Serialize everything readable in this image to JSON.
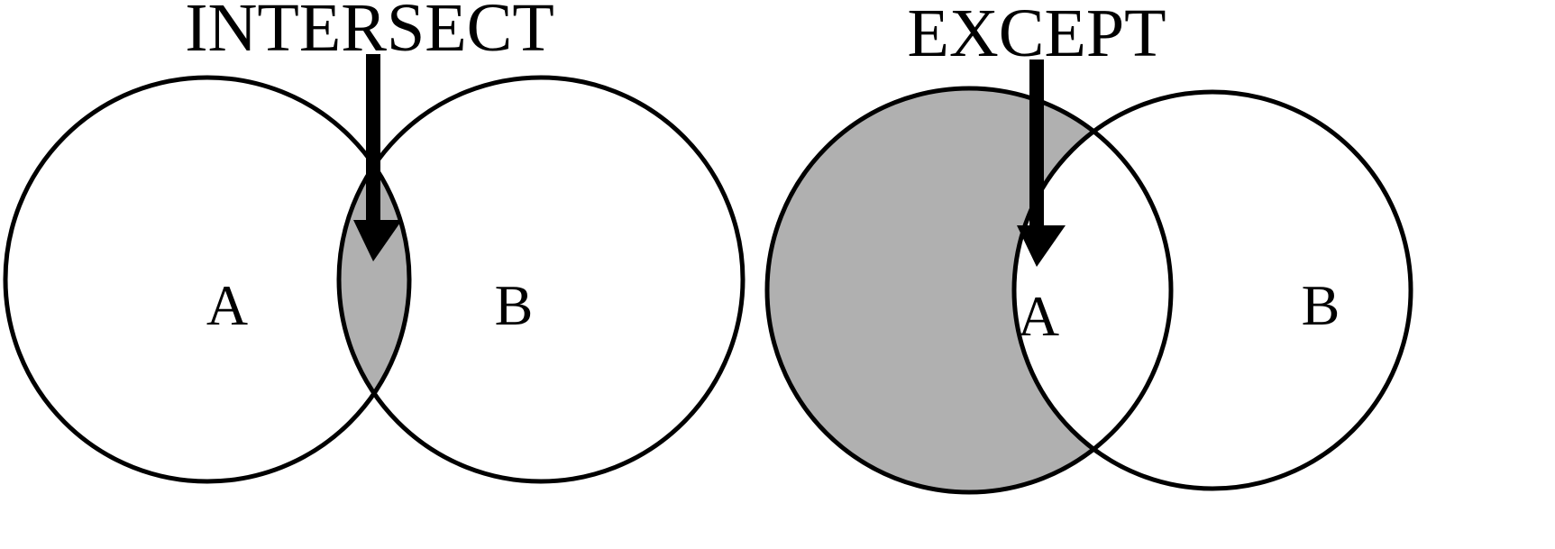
{
  "colors": {
    "shade": "#b0b0b0",
    "stroke": "#000000",
    "background": "#ffffff"
  },
  "diagrams": [
    {
      "operation": "INTERSECT",
      "left_set": "A",
      "right_set": "B",
      "shaded_region": "A and B overlap"
    },
    {
      "operation": "EXCEPT",
      "left_set": "A",
      "right_set": "B",
      "shaded_region": "A only"
    }
  ]
}
